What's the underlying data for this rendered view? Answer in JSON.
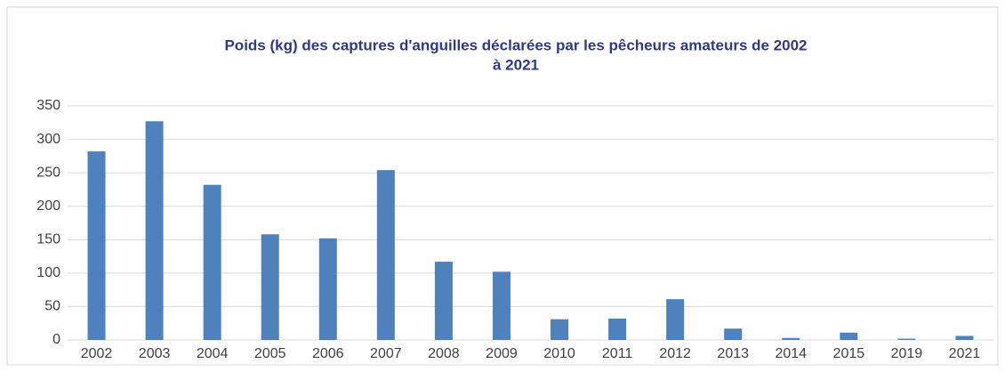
{
  "chart_data": {
    "type": "bar",
    "title": [
      "Poids (kg) des captures d'anguilles déclarées par les pêcheurs amateurs de 2002",
      "à 2021"
    ],
    "categories": [
      "2002",
      "2003",
      "2004",
      "2005",
      "2006",
      "2007",
      "2008",
      "2009",
      "2010",
      "2011",
      "2012",
      "2013",
      "2014",
      "2015",
      "2019",
      "2021"
    ],
    "values": [
      282,
      327,
      232,
      158,
      152,
      254,
      117,
      102,
      31,
      32,
      61,
      17,
      3,
      11,
      2,
      6
    ],
    "color": "#4f81bd",
    "ylim": [
      0,
      350
    ],
    "yticks": [
      0,
      50,
      100,
      150,
      200,
      250,
      300,
      350
    ],
    "grid": true
  }
}
